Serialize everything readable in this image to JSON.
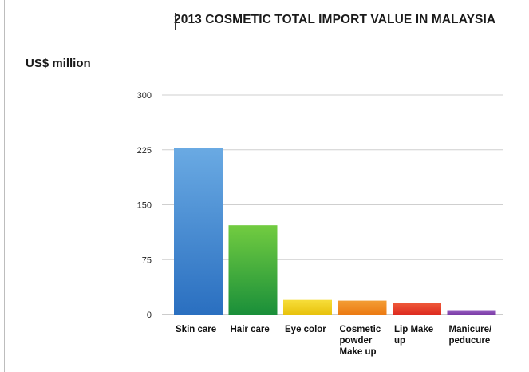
{
  "header": {
    "title": "2013 COSMETIC TOTAL IMPORT VALUE IN MALAYSIA",
    "unit_label": "US$ million"
  },
  "chart_data": {
    "type": "bar",
    "title": "2013 COSMETIC TOTAL IMPORT VALUE IN MALAYSIA",
    "ylabel": "US$ million",
    "xlabel": "",
    "ylim": [
      0,
      300
    ],
    "yticks": [
      0,
      75,
      150,
      225,
      300
    ],
    "grid": true,
    "categories": [
      [
        "Skin care"
      ],
      [
        "Hair care"
      ],
      [
        "Eye color"
      ],
      [
        "Cosmetic",
        "powder",
        "Make up"
      ],
      [
        "Lip Make",
        "up"
      ],
      [
        "Manicure/",
        "peducure"
      ]
    ],
    "values": [
      228,
      122,
      20,
      19,
      16,
      6
    ],
    "colors": [
      [
        "#2a6fc0",
        "#6aaae3"
      ],
      [
        "#1a8f3a",
        "#72cc40"
      ],
      [
        "#e8c20c",
        "#f7de3a"
      ],
      [
        "#ec7a12",
        "#f39d35"
      ],
      [
        "#dd2a1f",
        "#ef5a3a"
      ],
      [
        "#7a3aa5",
        "#9a62c4"
      ]
    ]
  }
}
